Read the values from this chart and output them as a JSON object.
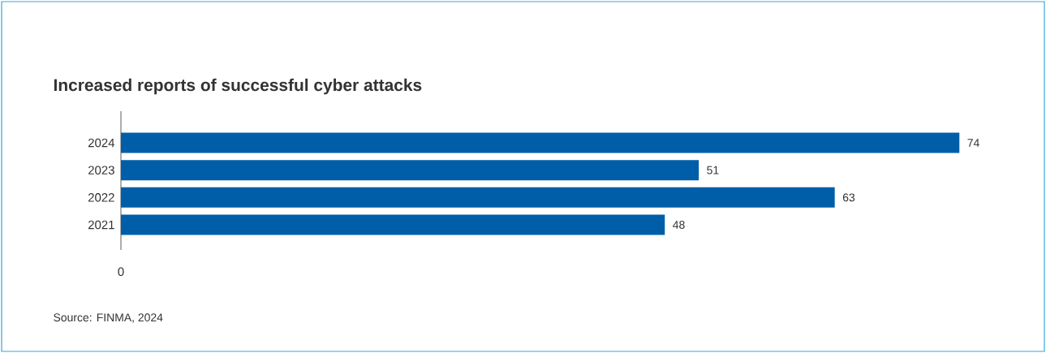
{
  "chart_data": {
    "type": "bar",
    "orientation": "horizontal",
    "title": "Increased reports of successful cyber attacks",
    "categories": [
      "2024",
      "2023",
      "2022",
      "2021"
    ],
    "values": [
      74,
      51,
      63,
      48
    ],
    "color": "#005ea8",
    "data_labels": true,
    "annotations": [
      "0",
      "Source: FINMA, 2024"
    ]
  }
}
